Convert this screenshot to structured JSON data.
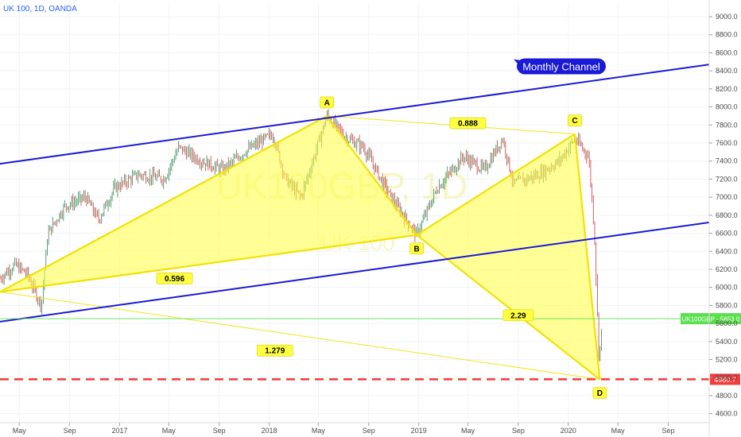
{
  "header": {
    "title": "UK 100, 1D, OANDA"
  },
  "watermark": {
    "symbol": "UK100GBP, 1D",
    "name": "UK 100"
  },
  "colors": {
    "background": "#ffffff",
    "pattern_fill": "#ffff40",
    "pattern_stroke": "#f2e200",
    "channel": "#1a1ad6",
    "support_line": "#f23b3b",
    "up_candle": "#2e8b57",
    "down_candle": "#d43a3a",
    "price_tag": "#59e04c"
  },
  "chart_data": {
    "type": "candlestick",
    "title": "UK 100, 1D, OANDA",
    "y_axis": {
      "ticks": [
        4600,
        4800,
        5000,
        5200,
        5400,
        5600,
        5800,
        6000,
        6200,
        6400,
        6600,
        6800,
        7000,
        7200,
        7400,
        7600,
        7800,
        8000,
        8200,
        8400,
        8600,
        8800,
        9000
      ],
      "tick_labels": [
        "4600.0",
        "4800.0",
        "5000.0",
        "5200.0",
        "5400.0",
        "5600.0",
        "5800.0",
        "6000.0",
        "6200.0",
        "6400.0",
        "6600.0",
        "6800.0",
        "7000.0",
        "7200.0",
        "7400.0",
        "7600.0",
        "7800.0",
        "8000.0",
        "8200.0",
        "8400.0",
        "8600.0",
        "8800.0",
        "9000.0"
      ],
      "range": [
        4500,
        9150
      ],
      "position": "right"
    },
    "x_axis": {
      "tick_labels": [
        "May",
        "Sep",
        "2017",
        "May",
        "Sep",
        "2018",
        "May",
        "Sep",
        "2019",
        "May",
        "Sep",
        "2020",
        "May",
        "Sep"
      ],
      "tick_dates": [
        "2016-05-01",
        "2016-09-01",
        "2017-01-01",
        "2017-05-01",
        "2017-09-01",
        "2018-01-01",
        "2018-05-01",
        "2018-09-01",
        "2019-01-01",
        "2019-05-01",
        "2019-09-01",
        "2020-01-01",
        "2020-05-01",
        "2020-09-01"
      ],
      "range": [
        "2016-03-15",
        "2020-12-10"
      ]
    },
    "price_path": [
      [
        "2016-03-15",
        6100
      ],
      [
        "2016-04-20",
        6250
      ],
      [
        "2016-05-20",
        6150
      ],
      [
        "2016-06-24",
        5800
      ],
      [
        "2016-07-10",
        6600
      ],
      [
        "2016-08-20",
        6900
      ],
      [
        "2016-10-10",
        7000
      ],
      [
        "2016-11-10",
        6750
      ],
      [
        "2016-12-20",
        7100
      ],
      [
        "2017-02-15",
        7250
      ],
      [
        "2017-04-20",
        7200
      ],
      [
        "2017-05-25",
        7550
      ],
      [
        "2017-07-20",
        7400
      ],
      [
        "2017-09-10",
        7300
      ],
      [
        "2017-11-01",
        7500
      ],
      [
        "2018-01-10",
        7700
      ],
      [
        "2018-02-10",
        7200
      ],
      [
        "2018-03-20",
        7000
      ],
      [
        "2018-05-22",
        7900
      ],
      [
        "2018-07-10",
        7650
      ],
      [
        "2018-08-20",
        7550
      ],
      [
        "2018-10-25",
        7000
      ],
      [
        "2018-12-27",
        6580
      ],
      [
        "2019-02-15",
        7100
      ],
      [
        "2019-04-20",
        7450
      ],
      [
        "2019-06-10",
        7300
      ],
      [
        "2019-07-25",
        7650
      ],
      [
        "2019-08-20",
        7150
      ],
      [
        "2019-10-20",
        7250
      ],
      [
        "2019-12-10",
        7400
      ],
      [
        "2020-01-17",
        7650
      ],
      [
        "2020-02-20",
        7450
      ],
      [
        "2020-03-05",
        6600
      ],
      [
        "2020-03-16",
        5200
      ],
      [
        "2020-03-25",
        5650
      ]
    ],
    "harmonic_pattern": {
      "points": [
        {
          "label": "",
          "date": "2016-03-15",
          "value": 5950
        },
        {
          "label": "A",
          "date": "2018-05-22",
          "value": 7900
        },
        {
          "label": "B",
          "date": "2018-12-27",
          "value": 6580
        },
        {
          "label": "C",
          "date": "2020-01-17",
          "value": 7700
        },
        {
          "label": "D",
          "date": "2020-03-18",
          "value": 4980
        }
      ],
      "ratios": [
        {
          "label": "0.596",
          "date": "2017-05-15",
          "value": 6100
        },
        {
          "label": "0.888",
          "date": "2019-05-01",
          "value": 7820
        },
        {
          "label": "2.29",
          "date": "2019-09-01",
          "value": 5690
        },
        {
          "label": "1.279",
          "date": "2018-01-15",
          "value": 5300
        }
      ]
    },
    "channel_lines": [
      {
        "from": [
          "2016-03-15",
          7370
        ],
        "to": [
          "2020-12-10",
          8470
        ]
      },
      {
        "from": [
          "2016-03-15",
          5620
        ],
        "to": [
          "2020-12-10",
          6720
        ]
      }
    ],
    "annotations": [
      {
        "text": "Monthly Channel",
        "date": "2019-12-15",
        "value": 8450
      }
    ],
    "horizontal_lines": [
      {
        "value": 4980.7,
        "label": "4980.7",
        "style": "dashed"
      },
      {
        "value": 5653,
        "label": "UK100GBP · 5653.0",
        "style": "solid"
      }
    ]
  }
}
